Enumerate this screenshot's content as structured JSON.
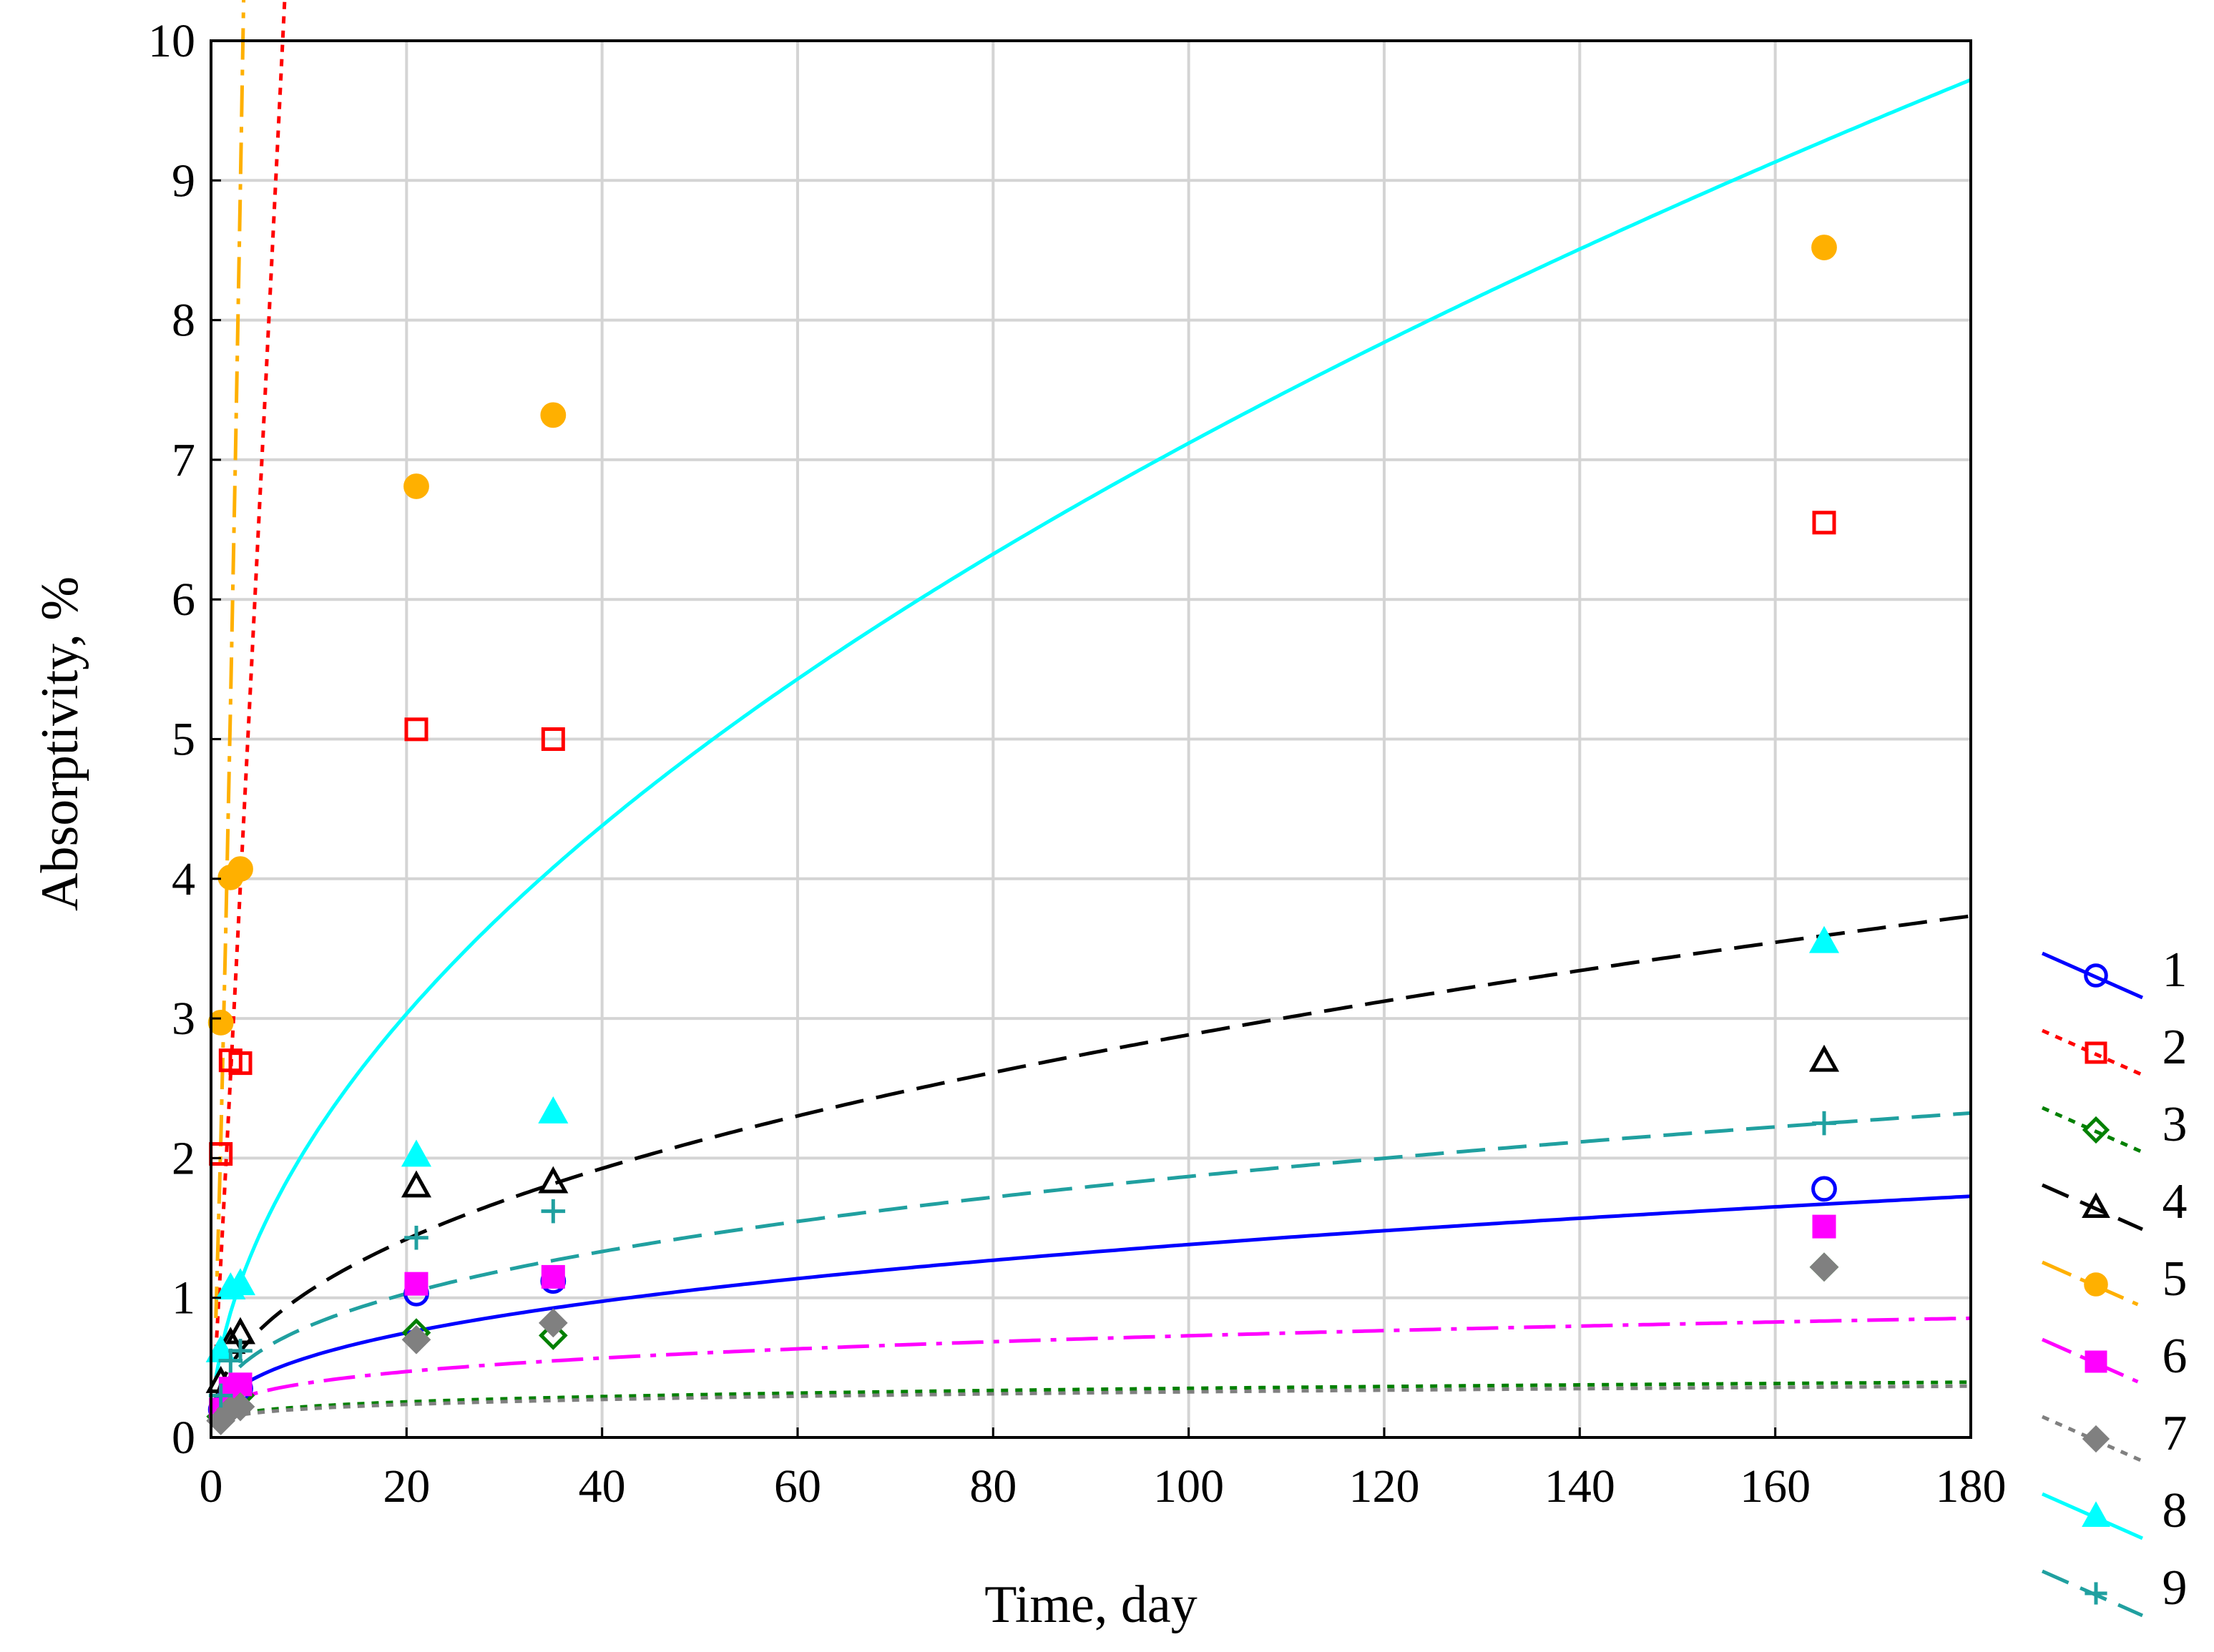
{
  "chart_data": {
    "type": "scatter",
    "title": "",
    "xlabel": "Time, day",
    "ylabel": "Absorptivity, %",
    "xlim": [
      0,
      180
    ],
    "ylim": [
      0,
      10
    ],
    "xticks": [
      0,
      20,
      40,
      60,
      80,
      100,
      120,
      140,
      160,
      180
    ],
    "yticks": [
      0,
      1,
      2,
      3,
      4,
      5,
      6,
      7,
      8,
      9,
      10
    ],
    "grid": true,
    "legend_position": "right",
    "series": [
      {
        "name": "1",
        "color": "#0000ff",
        "marker": "circle-open",
        "line": "solid",
        "x": [
          1,
          2,
          3,
          21,
          35,
          165
        ],
        "y": [
          0.2,
          0.3,
          0.35,
          1.03,
          1.12,
          1.78
        ],
        "fit": {
          "a": 0.24,
          "b": 0.38
        }
      },
      {
        "name": "2",
        "color": "#ff0000",
        "marker": "square-open",
        "line": "dotted",
        "x": [
          1,
          2,
          3,
          21,
          35,
          165
        ],
        "y": [
          2.03,
          2.7,
          2.68,
          5.07,
          5.0,
          6.55
        ],
        "fit": {
          "a": 1.26,
          "b": 1.04
        }
      },
      {
        "name": "3",
        "color": "#008000",
        "marker": "diamond-open",
        "line": "dotted",
        "x": [
          1,
          2,
          3,
          21,
          35,
          165
        ],
        "y": [
          0.15,
          0.25,
          0.3,
          0.75,
          0.73,
          1.22
        ],
        "fit": {
          "a": 0.14,
          "b": 0.2
        }
      },
      {
        "name": "4",
        "color": "#000000",
        "marker": "triangle-open",
        "line": "dashed",
        "x": [
          1,
          2,
          3,
          21,
          35,
          165
        ],
        "y": [
          0.4,
          0.68,
          0.75,
          1.8,
          1.83,
          2.7
        ],
        "fit": {
          "a": 0.38,
          "b": 0.44
        }
      },
      {
        "name": "5",
        "color": "#ffb000",
        "marker": "circle-filled",
        "line": "dashdot",
        "x": [
          1,
          2,
          3,
          21,
          35,
          165
        ],
        "y": [
          2.97,
          4.01,
          4.07,
          6.81,
          7.32,
          8.52
        ],
        "fit": {
          "a": 2.12,
          "b": 1.31
        }
      },
      {
        "name": "6",
        "color": "#ff00ff",
        "marker": "square-filled",
        "line": "dashdot",
        "x": [
          1,
          2,
          3,
          21,
          35,
          165
        ],
        "y": [
          0.2,
          0.35,
          0.38,
          1.1,
          1.15,
          1.51
        ],
        "fit": {
          "a": 0.21,
          "b": 0.27
        }
      },
      {
        "name": "7",
        "color": "#808080",
        "marker": "diamond-filled",
        "line": "dotted",
        "x": [
          1,
          2,
          3,
          21,
          35,
          165
        ],
        "y": [
          0.12,
          0.2,
          0.22,
          0.7,
          0.82,
          1.22
        ],
        "fit": {
          "a": 0.13,
          "b": 0.2
        }
      },
      {
        "name": "8",
        "color": "#00ffff",
        "marker": "triangle-filled",
        "line": "solid",
        "x": [
          1,
          2,
          3,
          21,
          35,
          165
        ],
        "y": [
          0.62,
          1.07,
          1.1,
          2.02,
          2.33,
          3.55
        ],
        "fit": {
          "a": 0.62,
          "b": 0.53
        }
      },
      {
        "name": "9",
        "color": "#20a0a0",
        "marker": "plus",
        "line": "dashed",
        "x": [
          1,
          2,
          3,
          21,
          35,
          165
        ],
        "y": [
          0.3,
          0.55,
          0.62,
          1.43,
          1.62,
          2.25
        ],
        "fit": {
          "a": 0.34,
          "b": 0.37
        }
      }
    ]
  }
}
